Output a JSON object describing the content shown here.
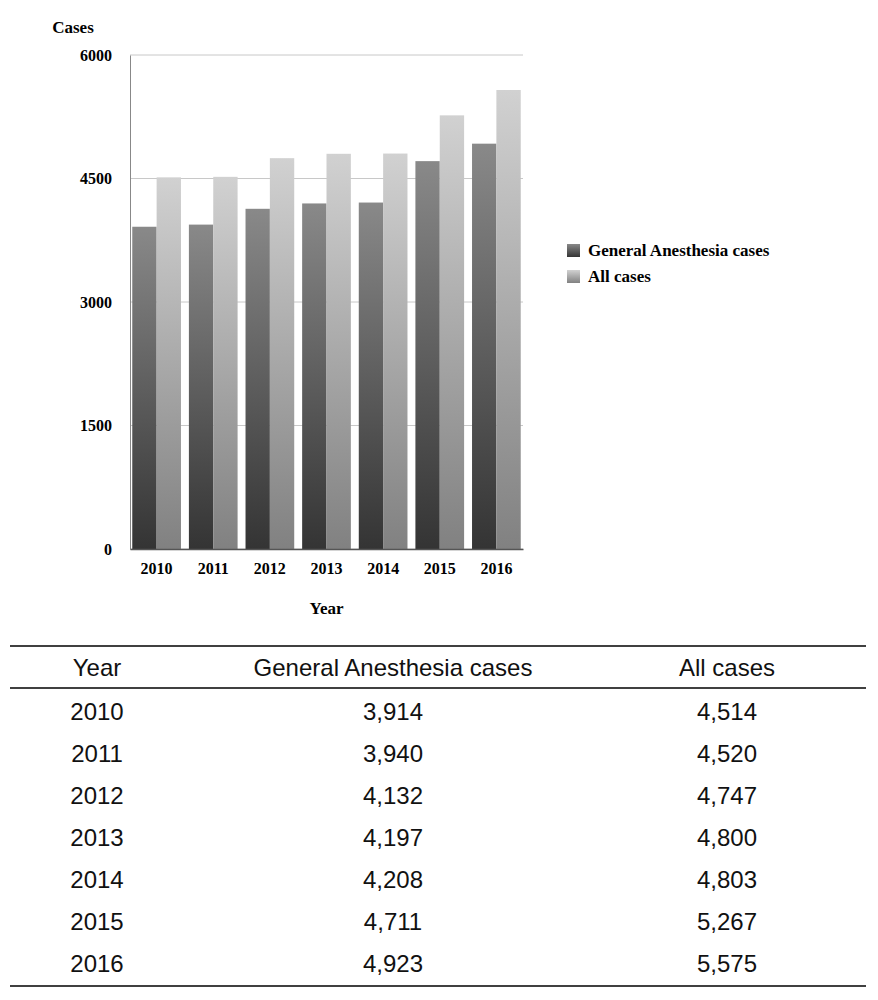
{
  "chart_data": {
    "type": "bar",
    "x_label": "Year",
    "y_label": "Cases",
    "categories": [
      "2010",
      "2011",
      "2012",
      "2013",
      "2014",
      "2015",
      "2016"
    ],
    "series": [
      {
        "name": "General Anesthesia cases",
        "color": "#4a4a4a",
        "values": [
          3914,
          3940,
          4132,
          4197,
          4208,
          4711,
          4923
        ]
      },
      {
        "name": "All cases",
        "color": "#b8b8b8",
        "values": [
          4514,
          4520,
          4747,
          4800,
          4803,
          5267,
          5575
        ]
      }
    ],
    "ylim": [
      0,
      6000
    ],
    "yticks": [
      0,
      1500,
      3000,
      4500,
      6000
    ],
    "grid": true,
    "legend": "right"
  },
  "table": {
    "header": [
      "Year",
      "General Anesthesia cases",
      "All cases"
    ],
    "rows": [
      [
        "2010",
        "3,914",
        "4,514"
      ],
      [
        "2011",
        "3,940",
        "4,520"
      ],
      [
        "2012",
        "4,132",
        "4,747"
      ],
      [
        "2013",
        "4,197",
        "4,800"
      ],
      [
        "2014",
        "4,208",
        "4,803"
      ],
      [
        "2015",
        "4,711",
        "5,267"
      ],
      [
        "2016",
        "4,923",
        "5,575"
      ]
    ]
  }
}
